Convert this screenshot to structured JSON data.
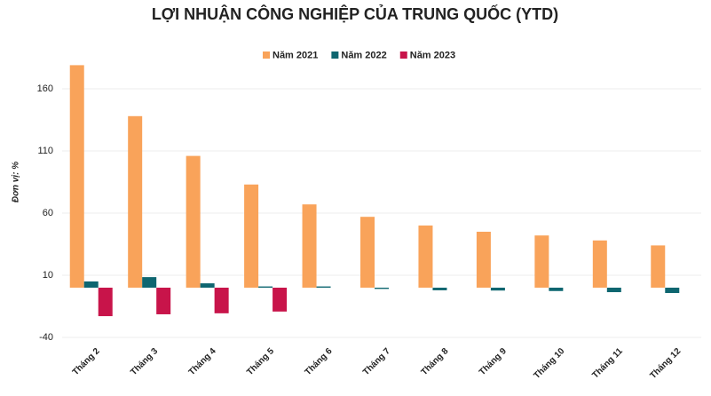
{
  "chart_data": {
    "type": "bar",
    "title": "LỢI NHUẬN CÔNG NGHIỆP CỦA TRUNG QUỐC (YTD)",
    "y_label": "Đơn vị: %",
    "categories": [
      "Tháng 2",
      "Tháng 3",
      "Tháng 4",
      "Tháng 5",
      "Tháng 6",
      "Tháng 7",
      "Tháng 8",
      "Tháng 9",
      "Tháng 10",
      "Tháng 11",
      "Tháng 12"
    ],
    "series": [
      {
        "name": "Năm 2021",
        "color": "#f9a35a",
        "values": [
          179,
          138,
          106,
          83,
          67,
          57,
          50,
          45,
          42,
          38,
          34
        ]
      },
      {
        "name": "Năm 2022",
        "color": "#0e6670",
        "values": [
          5,
          8.5,
          3.5,
          1,
          1,
          -1,
          -2.1,
          -2.3,
          -2.7,
          -3.6,
          -4.3
        ]
      },
      {
        "name": "Năm 2023",
        "color": "#c8144a",
        "values": [
          -22.9,
          -21.4,
          -20.6,
          -19.2,
          null,
          null,
          null,
          null,
          null,
          null,
          null
        ]
      }
    ],
    "ylim": [
      -40,
      185
    ],
    "yticks": [
      -40,
      10,
      60,
      110,
      160
    ],
    "grid": true,
    "legend": "top"
  }
}
